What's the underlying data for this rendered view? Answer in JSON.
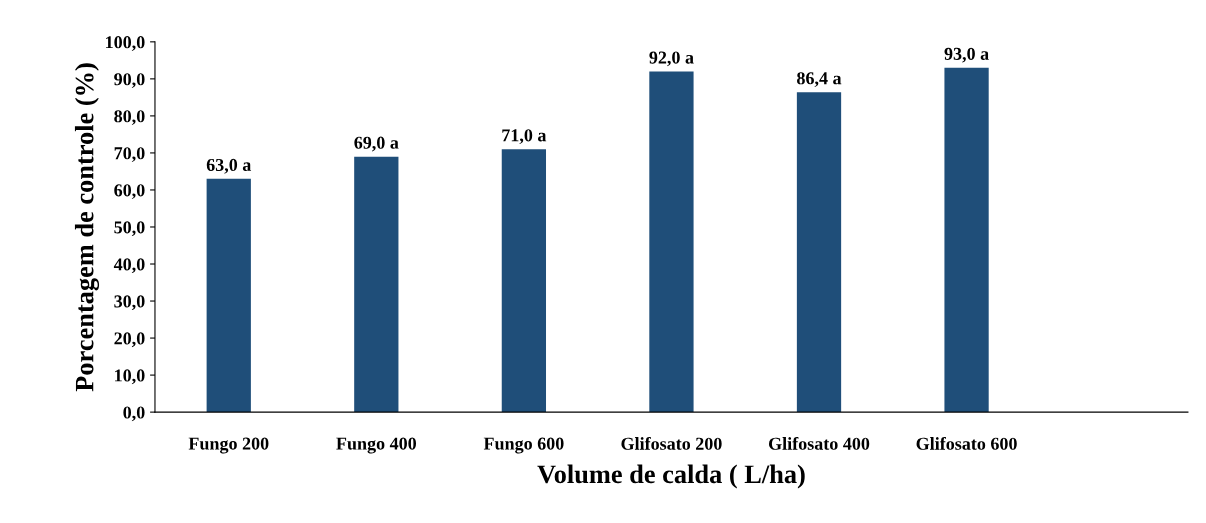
{
  "chart_data": {
    "type": "bar",
    "xlabel": "Volume de calda ( L/ha)",
    "ylabel": "Porcentagem de controle (%)",
    "categories": [
      "Fungo 200",
      "Fungo 400",
      "Fungo 600",
      "Glifosato 200",
      "Glifosato 400",
      "Glifosato 600",
      null
    ],
    "values": [
      63.0,
      69.0,
      71.0,
      92.0,
      86.4,
      93.0,
      null
    ],
    "value_labels": [
      "63,0 a",
      "69,0 a",
      "71,0 a",
      "92,0 a",
      "86,4 a",
      "93,0 a",
      null
    ],
    "color": "#1f4e79",
    "ylim": [
      0,
      100
    ],
    "yticks": [
      {
        "value": 0,
        "label": "0,0"
      },
      {
        "value": 10,
        "label": "10,0"
      },
      {
        "value": 20,
        "label": "20,0"
      },
      {
        "value": 30,
        "label": "30,0"
      },
      {
        "value": 40,
        "label": "40,0"
      },
      {
        "value": 50,
        "label": "50,0"
      },
      {
        "value": 60,
        "label": "60,0"
      },
      {
        "value": 70,
        "label": "70,0"
      },
      {
        "value": 80,
        "label": "80,0"
      },
      {
        "value": 90,
        "label": "90,0"
      },
      {
        "value": 100,
        "label": "100,0"
      }
    ],
    "grid": false
  }
}
